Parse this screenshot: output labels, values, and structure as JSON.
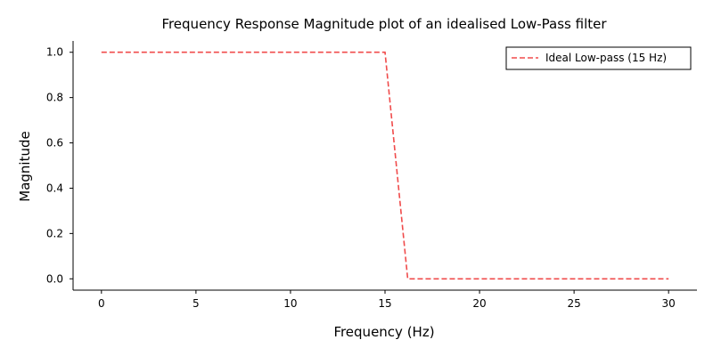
{
  "chart_data": {
    "type": "line",
    "title": "Frequency Response Magnitude plot of an idealised Low-Pass filter",
    "xlabel": "Frequency (Hz)",
    "ylabel": "Magnitude",
    "xlim": [
      -1.5,
      31.5
    ],
    "ylim": [
      -0.05,
      1.05
    ],
    "xticks": [
      0,
      5,
      10,
      15,
      20,
      25,
      30
    ],
    "yticks": [
      0.0,
      0.2,
      0.4,
      0.6,
      0.8,
      1.0
    ],
    "xtick_labels": [
      "0",
      "5",
      "10",
      "15",
      "20",
      "25",
      "30"
    ],
    "ytick_labels": [
      "0.0",
      "0.2",
      "0.4",
      "0.6",
      "0.8",
      "1.0"
    ],
    "grid": false,
    "legend_position": "top-right",
    "series": [
      {
        "name": "Ideal Low-pass (15 Hz)",
        "color": "#f04b4b",
        "line_style": "dashed",
        "x": [
          0,
          15,
          16.2,
          30
        ],
        "y": [
          1.0,
          1.0,
          0.0,
          0.0
        ]
      }
    ]
  }
}
